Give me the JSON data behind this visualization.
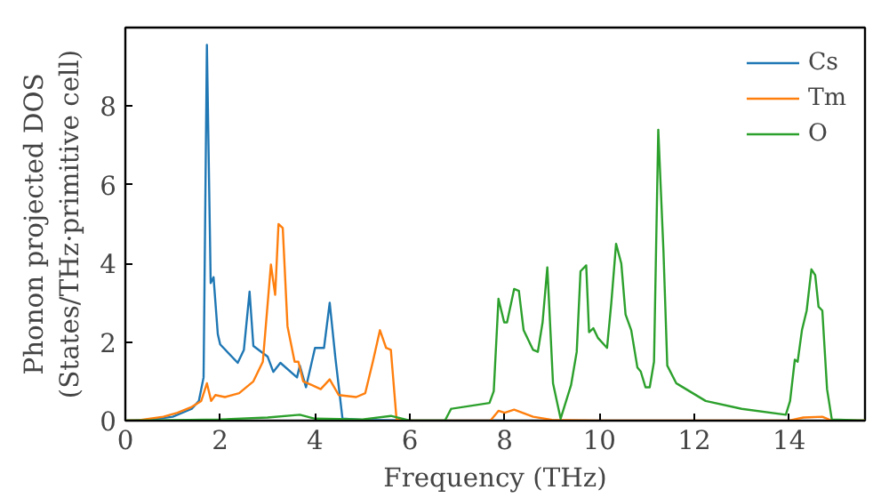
{
  "chart_data": {
    "type": "line",
    "xlabel": "Frequency (THz)",
    "ylabel": "Phonon projected DOS\n(States/THz·primitive cell)",
    "xlim": [
      0,
      15.6
    ],
    "ylim": [
      0,
      10
    ],
    "xticks": [
      0,
      2,
      4,
      6,
      8,
      10,
      12,
      14
    ],
    "yticks": [
      0,
      2,
      4,
      6,
      8
    ],
    "grid": false,
    "legend": "top right",
    "series": [
      {
        "name": "Cs",
        "color": "#1f77b4",
        "x": [
          0,
          0.5,
          1.0,
          1.4,
          1.55,
          1.65,
          1.72,
          1.8,
          1.86,
          1.95,
          2.0,
          2.37,
          2.5,
          2.62,
          2.7,
          3.0,
          3.12,
          3.27,
          3.62,
          3.68,
          3.81,
          4.0,
          4.19,
          4.31,
          4.43,
          4.58,
          5.0,
          6.0,
          8.0
        ],
        "values": [
          0,
          0.02,
          0.1,
          0.3,
          0.5,
          1.1,
          9.56,
          3.5,
          3.65,
          2.2,
          1.94,
          1.47,
          1.8,
          3.28,
          1.9,
          1.63,
          1.24,
          1.47,
          1.1,
          1.4,
          0.85,
          1.85,
          1.85,
          3.0,
          1.6,
          0.05,
          0.02,
          0,
          0
        ]
      },
      {
        "name": "Tm",
        "color": "#ff7f0e",
        "x": [
          0,
          0.3,
          0.8,
          1.1,
          1.4,
          1.6,
          1.72,
          1.81,
          1.9,
          2.1,
          2.4,
          2.7,
          2.9,
          3.07,
          3.16,
          3.23,
          3.32,
          3.42,
          3.57,
          3.65,
          3.75,
          3.94,
          4.12,
          4.31,
          4.5,
          4.87,
          5.06,
          5.22,
          5.37,
          5.5,
          5.6,
          5.72,
          6.0,
          7.7,
          7.87,
          8.0,
          8.2,
          8.6,
          9.0,
          10.0,
          12.0,
          14.0,
          14.3,
          14.7,
          14.9,
          15.6
        ],
        "values": [
          0,
          0.01,
          0.1,
          0.2,
          0.35,
          0.5,
          0.95,
          0.5,
          0.65,
          0.6,
          0.7,
          1.0,
          1.5,
          3.97,
          3.2,
          5.0,
          4.9,
          2.4,
          1.5,
          1.5,
          1.0,
          0.9,
          0.8,
          1.05,
          0.65,
          0.6,
          0.7,
          1.5,
          2.3,
          1.85,
          1.8,
          0.03,
          0,
          0,
          0.25,
          0.2,
          0.28,
          0.1,
          0.02,
          0,
          0,
          0,
          0.08,
          0.1,
          0,
          0
        ]
      },
      {
        "name": "O",
        "color": "#2ca02c",
        "x": [
          0,
          1.0,
          2.0,
          3.0,
          3.68,
          4.0,
          5.0,
          5.6,
          6.0,
          6.74,
          6.87,
          7.68,
          7.77,
          7.87,
          7.99,
          8.05,
          8.2,
          8.3,
          8.4,
          8.6,
          8.7,
          8.8,
          8.9,
          9.02,
          9.18,
          9.4,
          9.52,
          9.6,
          9.72,
          9.78,
          9.87,
          9.97,
          10.16,
          10.25,
          10.35,
          10.46,
          10.55,
          10.67,
          10.8,
          10.87,
          10.97,
          11.06,
          11.15,
          11.24,
          11.35,
          11.43,
          11.62,
          12.24,
          13.0,
          13.93,
          14.02,
          14.12,
          14.18,
          14.27,
          14.37,
          14.47,
          14.55,
          14.62,
          14.7,
          14.8,
          14.9,
          15.6
        ],
        "values": [
          0,
          0.01,
          0.03,
          0.08,
          0.15,
          0.05,
          0.03,
          0.12,
          0,
          0,
          0.3,
          0.45,
          0.75,
          3.1,
          2.5,
          2.5,
          3.35,
          3.3,
          2.3,
          1.8,
          1.75,
          2.5,
          3.9,
          0.95,
          0.05,
          0.9,
          1.75,
          3.8,
          3.95,
          2.25,
          2.35,
          2.1,
          1.85,
          3.0,
          4.5,
          4.0,
          2.7,
          2.3,
          1.35,
          1.25,
          0.85,
          0.85,
          1.5,
          7.4,
          4.3,
          1.4,
          0.95,
          0.5,
          0.3,
          0.15,
          0.5,
          1.55,
          1.5,
          2.3,
          2.8,
          3.85,
          3.7,
          2.9,
          2.8,
          0.8,
          0.03,
          0
        ]
      }
    ]
  }
}
